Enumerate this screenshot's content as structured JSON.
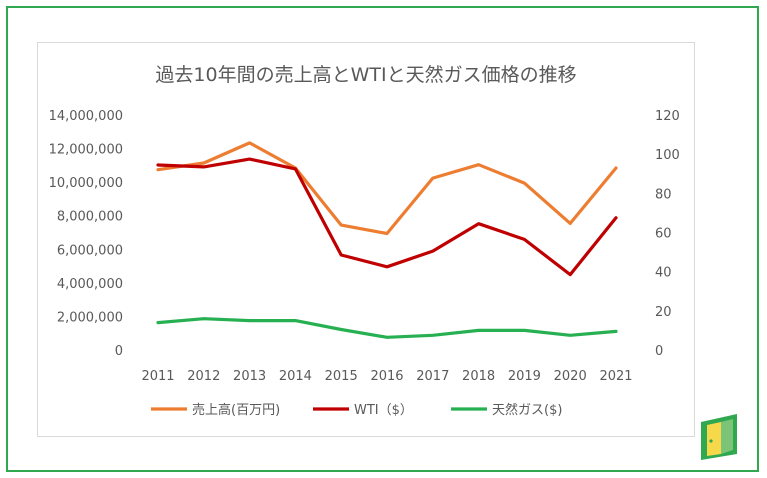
{
  "chart_data": {
    "type": "line",
    "title": "過去10年間の売上高とWTIと天然ガス価格の推移",
    "categories": [
      "2011",
      "2012",
      "2013",
      "2014",
      "2015",
      "2016",
      "2017",
      "2018",
      "2019",
      "2020",
      "2021"
    ],
    "y_left": {
      "ylim": [
        0,
        14000000
      ],
      "ticks": [
        "0",
        "2,000,000",
        "4,000,000",
        "6,000,000",
        "8,000,000",
        "10,000,000",
        "12,000,000",
        "14,000,000"
      ]
    },
    "y_right": {
      "ylim": [
        0,
        120
      ],
      "ticks": [
        "0",
        "20",
        "40",
        "60",
        "80",
        "100",
        "120"
      ]
    },
    "series": [
      {
        "name": "売上高(百万円)",
        "axis": "left",
        "color": "#ed7d31",
        "values": [
          10800000,
          11200000,
          12400000,
          10900000,
          7500000,
          7000000,
          10300000,
          11100000,
          10000000,
          7600000,
          10900000
        ]
      },
      {
        "name": "WTI（$）",
        "axis": "right",
        "color": "#c00000",
        "values": [
          95,
          94,
          98,
          93,
          49,
          43,
          51,
          65,
          57,
          39,
          68
        ]
      },
      {
        "name": "天然ガス($)",
        "axis": "right",
        "color": "#27b052",
        "values": [
          14.5,
          16.5,
          15.5,
          15.5,
          11,
          7,
          8,
          10.5,
          10.5,
          8,
          10
        ]
      }
    ],
    "legend_position": "bottom",
    "grid": false
  },
  "colors": {
    "frame": "#2fa84f",
    "text": "#595959"
  },
  "logo": {
    "icon": "door-icon"
  }
}
